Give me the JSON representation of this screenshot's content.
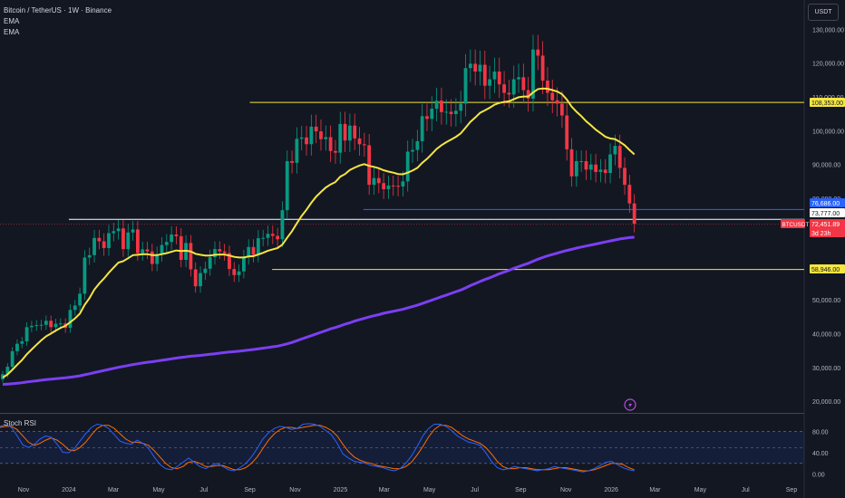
{
  "header": {
    "title": "Bitcoin / TetherUS · 1W · Binance",
    "indicator1": "EMA",
    "indicator2": "EMA",
    "currency_button": "USDT"
  },
  "indicator_panel": {
    "title": "Stoch RSI",
    "ticks": [
      "80.00",
      "40.00",
      "0.00"
    ]
  },
  "chart_data": {
    "type": "candlestick",
    "symbol": "BTCUSDT",
    "interval": "1W",
    "price_axis": {
      "ticks": [
        130000,
        120000,
        110000,
        100000,
        90000,
        80000,
        70000,
        60000,
        50000,
        40000,
        30000,
        20000
      ],
      "tick_labels": [
        "130,000.00",
        "120,000.00",
        "110,000.00",
        "100,000.00",
        "90,000.00",
        "80,000.00",
        "70,000.00",
        "60,000.00",
        "50,000.00",
        "40,000.00",
        "30,000.00",
        "20,000.00"
      ],
      "range": [
        18000,
        136000
      ]
    },
    "time_axis": {
      "labels": [
        "Nov",
        "2024",
        "Mar",
        "May",
        "Jul",
        "Sep",
        "Nov",
        "2025",
        "Mar",
        "May",
        "Jul",
        "Sep",
        "Nov",
        "2026",
        "Mar",
        "May",
        "Jul",
        "Sep"
      ],
      "label_dates": [
        "2023-11",
        "2024-01",
        "2024-03",
        "2024-05",
        "2024-07",
        "2024-09",
        "2024-11",
        "2025-01",
        "2025-03",
        "2025-05",
        "2025-07",
        "2025-09",
        "2025-11",
        "2026-01",
        "2026-03",
        "2026-05",
        "2026-07",
        "2026-09"
      ]
    },
    "price_labels": [
      {
        "value": "108,353.00",
        "color": "#f5e642"
      },
      {
        "value": "76,686.00",
        "color": "#2962ff"
      },
      {
        "value": "73,777.00",
        "color": "#ffffff"
      },
      {
        "value": "72,451.89",
        "sub": "3d 23h",
        "tag": "BTCUSDT",
        "color": "#f23645"
      },
      {
        "value": "58,946.00",
        "color": "#f5e642"
      }
    ],
    "horizontal_levels": [
      {
        "price": 108353,
        "color": "#f5e642",
        "from": "2024-09"
      },
      {
        "price": 76686,
        "color": "#2962ff",
        "from": "2025-02"
      },
      {
        "price": 73777,
        "color": "#ffffff",
        "from": "2024-01"
      },
      {
        "price": 58946,
        "color": "#f5e642",
        "from": "2024-10"
      }
    ],
    "current_price": 72451.89,
    "countdown": "3d 23h",
    "candles_close": [
      28000,
      30200,
      34800,
      37000,
      37700,
      41900,
      42300,
      42500,
      42600,
      43800,
      41900,
      42900,
      43000,
      41700,
      47000,
      48300,
      51800,
      62500,
      63200,
      68300,
      67300,
      65300,
      69700,
      70300,
      71100,
      65000,
      69900,
      70800,
      63800,
      64900,
      64300,
      60600,
      63500,
      66200,
      67100,
      69300,
      68800,
      61800,
      66800,
      59000,
      54000,
      57900,
      59200,
      62600,
      65000,
      64300,
      63800,
      59100,
      57300,
      58400,
      62600,
      65600,
      63300,
      68200,
      68300,
      69500,
      68900,
      67900,
      76500,
      91000,
      90500,
      97600,
      98000,
      96000,
      101200,
      99800,
      97500,
      98100,
      94000,
      93500,
      102000,
      97100,
      101500,
      97700,
      96000,
      95700,
      84000,
      86000,
      84500,
      82700,
      83800,
      83700,
      83500,
      85000,
      93800,
      94300,
      96900,
      104300,
      103500,
      106500,
      108900,
      105500,
      105600,
      104900,
      105900,
      108000,
      118500,
      119800,
      117500,
      119500,
      113300,
      115200,
      117500,
      113700,
      111200,
      110700,
      115200,
      115800,
      112000,
      109500,
      124000,
      122200,
      114800,
      111200,
      109000,
      108000,
      104500,
      94500,
      86500,
      91000,
      91000,
      88500,
      90000,
      87800,
      88500,
      87500,
      93000,
      95500,
      89000,
      84000,
      78500,
      72450
    ],
    "ema_fast": [
      27000,
      27900,
      29300,
      30800,
      32200,
      33900,
      35300,
      36700,
      38000,
      39200,
      40000,
      40900,
      41700,
      42300,
      43400,
      44500,
      45900,
      48500,
      50500,
      53000,
      54800,
      56300,
      58000,
      59500,
      61000,
      61400,
      62300,
      63200,
      63300,
      63500,
      63500,
      63200,
      63200,
      63500,
      63800,
      64200,
      64600,
      64400,
      64500,
      64300,
      63600,
      63300,
      63100,
      63100,
      63300,
      63400,
      63400,
      63100,
      62700,
      62500,
      62500,
      62800,
      62900,
      63400,
      63900,
      64500,
      64900,
      65300,
      66300,
      68400,
      70300,
      72600,
      74800,
      76600,
      78700,
      80500,
      81900,
      83200,
      84100,
      84800,
      86400,
      87200,
      88400,
      89100,
      89700,
      90100,
      89600,
      89300,
      88900,
      88300,
      87900,
      87600,
      87200,
      87100,
      87600,
      88200,
      89000,
      90500,
      91700,
      93100,
      94600,
      95700,
      96600,
      97400,
      98200,
      99200,
      100900,
      102600,
      103900,
      105300,
      106000,
      106800,
      107700,
      108200,
      108500,
      108700,
      109300,
      109900,
      110100,
      110100,
      111300,
      112300,
      112500,
      112400,
      112000,
      111600,
      110800,
      109200,
      107100,
      105600,
      104300,
      102800,
      101600,
      100300,
      99300,
      98200,
      97700,
      97500,
      96700,
      95700,
      94300,
      93000
    ],
    "ema_slow": [
      25000,
      25080,
      25180,
      25320,
      25480,
      25680,
      25870,
      26050,
      26220,
      26380,
      26520,
      26660,
      26790,
      26920,
      27110,
      27300,
      27520,
      27830,
      28130,
      28470,
      28780,
      29080,
      29410,
      29720,
      30040,
      30290,
      30570,
      30850,
      31080,
      31300,
      31520,
      31700,
      31900,
      32110,
      32320,
      32540,
      32760,
      32940,
      33140,
      33310,
      33430,
      33570,
      33710,
      33870,
      34050,
      34230,
      34400,
      34540,
      34670,
      34800,
      34960,
      35140,
      35300,
      35500,
      35700,
      35900,
      36100,
      36300,
      36600,
      37000,
      37400,
      37900,
      38400,
      38900,
      39400,
      39900,
      40400,
      40900,
      41400,
      41800,
      42300,
      42800,
      43200,
      43700,
      44100,
      44500,
      44900,
      45300,
      45600,
      46000,
      46300,
      46600,
      46900,
      47200,
      47600,
      48000,
      48400,
      48900,
      49400,
      49900,
      50400,
      50900,
      51400,
      51900,
      52400,
      52900,
      53500,
      54200,
      54800,
      55400,
      56000,
      56500,
      57100,
      57700,
      58200,
      58700,
      59300,
      59800,
      60300,
      60800,
      61400,
      62000,
      62500,
      63000,
      63400,
      63800,
      64200,
      64600,
      64900,
      65300,
      65600,
      65900,
      66200,
      66500,
      66800,
      67100,
      67400,
      67700,
      68000,
      68200,
      68400,
      68500
    ],
    "stoch_k": [
      90,
      93,
      88,
      72,
      55,
      50,
      56,
      66,
      72,
      69,
      56,
      41,
      40,
      48,
      62,
      76,
      88,
      94,
      92,
      86,
      74,
      62,
      58,
      56,
      64,
      58,
      48,
      32,
      18,
      10,
      8,
      14,
      22,
      30,
      22,
      14,
      10,
      16,
      20,
      14,
      8,
      6,
      12,
      20,
      32,
      48,
      66,
      78,
      86,
      90,
      88,
      84,
      86,
      94,
      95,
      94,
      90,
      82,
      74,
      58,
      38,
      30,
      24,
      22,
      20,
      16,
      14,
      12,
      8,
      6,
      10,
      20,
      34,
      52,
      72,
      86,
      94,
      94,
      90,
      82,
      72,
      66,
      60,
      58,
      54,
      40,
      24,
      12,
      8,
      10,
      14,
      12,
      10,
      8,
      6,
      8,
      10,
      14,
      12,
      10,
      8,
      6,
      4,
      6,
      10,
      16,
      22,
      24,
      18,
      12,
      8,
      6
    ],
    "stoch_d": [
      88,
      90,
      90,
      84,
      72,
      60,
      54,
      58,
      64,
      68,
      64,
      56,
      46,
      44,
      50,
      60,
      74,
      86,
      92,
      92,
      86,
      76,
      66,
      60,
      60,
      58,
      54,
      44,
      32,
      20,
      12,
      10,
      14,
      22,
      24,
      20,
      14,
      14,
      16,
      16,
      12,
      8,
      8,
      12,
      20,
      32,
      48,
      64,
      76,
      84,
      88,
      88,
      86,
      88,
      90,
      92,
      92,
      88,
      82,
      72,
      56,
      42,
      32,
      26,
      22,
      20,
      16,
      14,
      12,
      10,
      10,
      14,
      22,
      36,
      52,
      70,
      84,
      92,
      92,
      88,
      80,
      72,
      66,
      62,
      58,
      50,
      38,
      24,
      14,
      10,
      10,
      12,
      12,
      10,
      8,
      8,
      8,
      10,
      12,
      12,
      10,
      8,
      6,
      6,
      8,
      12,
      16,
      20,
      20,
      18,
      12,
      8
    ]
  }
}
